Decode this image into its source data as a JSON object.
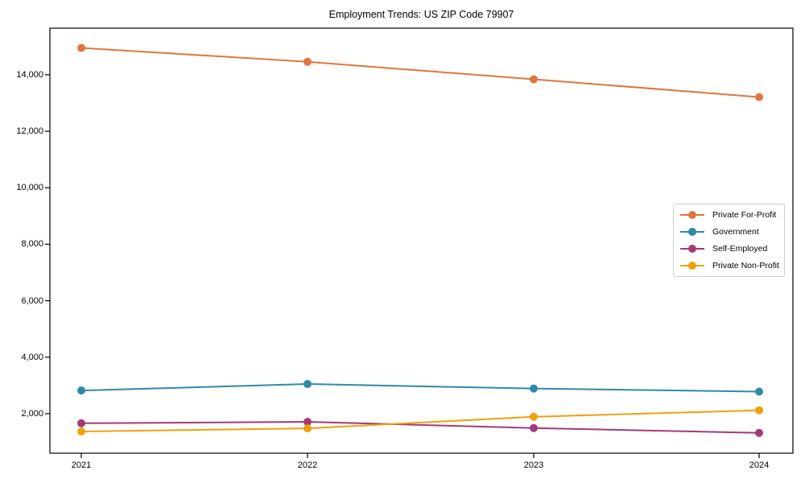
{
  "chart_data": {
    "type": "line",
    "title": "Employment Trends: US ZIP Code 79907",
    "xlabel": "",
    "ylabel": "",
    "categories": [
      "2021",
      "2022",
      "2023",
      "2024"
    ],
    "series": [
      {
        "name": "Private For-Profit",
        "color": "#e0763c",
        "values": [
          14950,
          14460,
          13840,
          13210
        ]
      },
      {
        "name": "Government",
        "color": "#2e8ba8",
        "values": [
          2820,
          3050,
          2890,
          2780
        ]
      },
      {
        "name": "Self-Employed",
        "color": "#a33a78",
        "values": [
          1660,
          1710,
          1490,
          1320
        ]
      },
      {
        "name": "Private Non-Profit",
        "color": "#efa00b",
        "values": [
          1370,
          1480,
          1890,
          2120
        ]
      }
    ],
    "yticks": [
      2000,
      4000,
      6000,
      8000,
      10000,
      12000,
      14000
    ],
    "yticklabels": [
      "2,000",
      "4,000",
      "6,000",
      "8,000",
      "10,000",
      "12,000",
      "14,000"
    ],
    "ylim": [
      600,
      15650
    ],
    "grid": false,
    "legend_position": "center right",
    "marker": "circle",
    "frame": "full-box"
  }
}
